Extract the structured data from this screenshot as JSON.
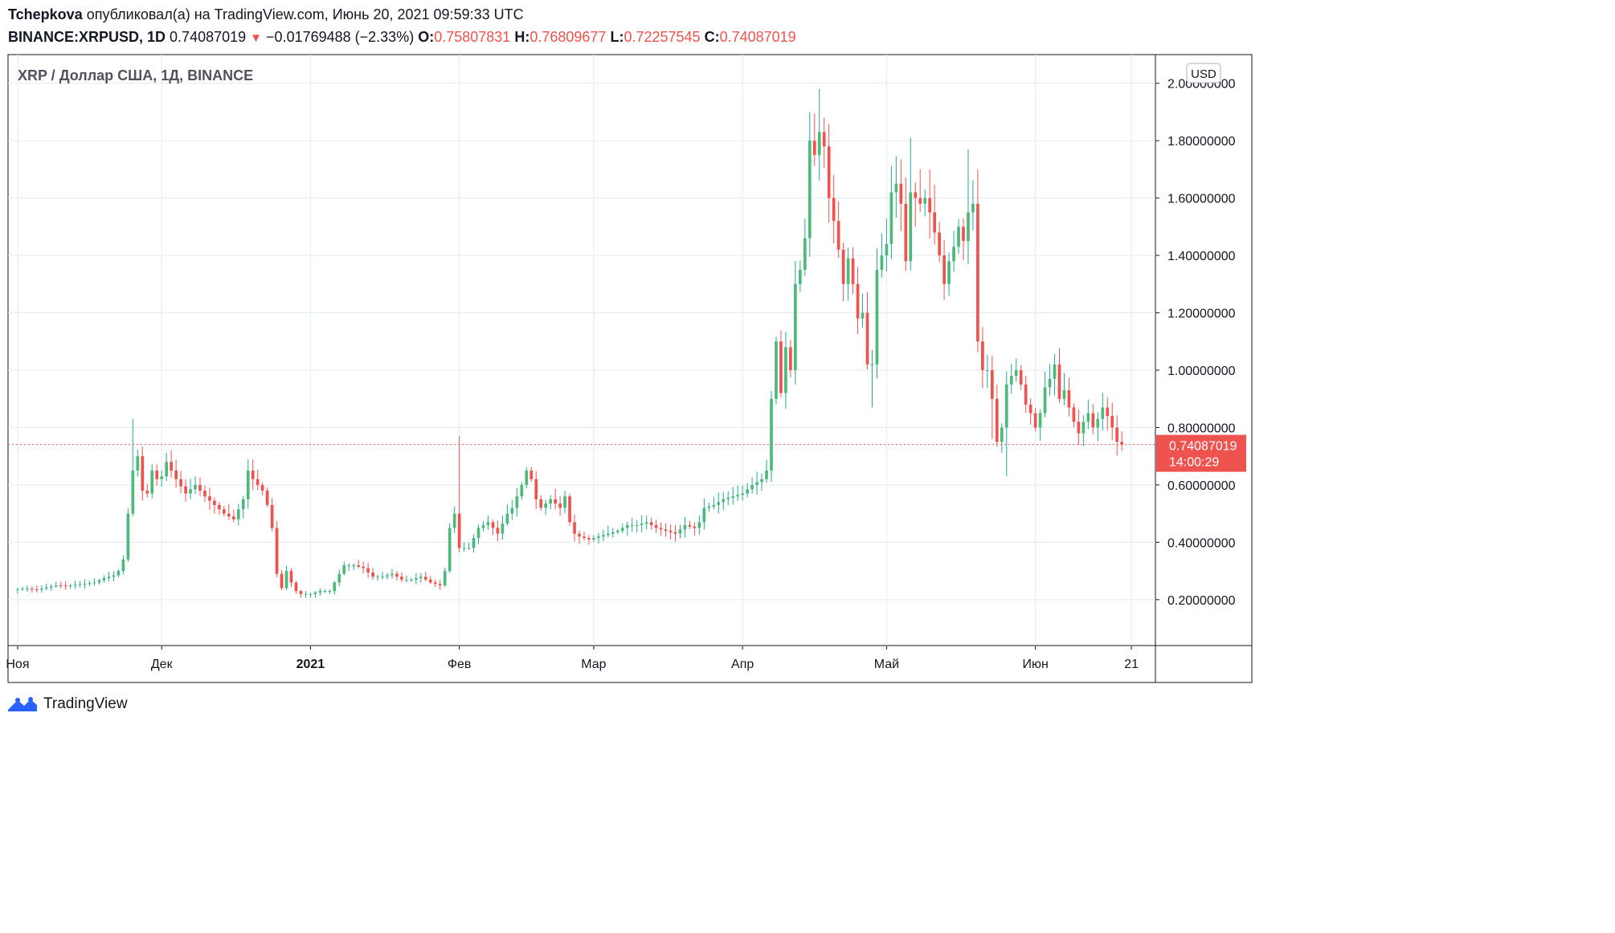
{
  "header": {
    "author": "Tchepkova",
    "published_text": "опубликовал(а) на TradingView.com, Июнь 20, 2021 09:59:33 UTC",
    "symbol": "BINANCE:XRPUSD, 1D",
    "price": "0.74087019",
    "change_arrow": "▼",
    "change": "−0.01769488 (−2.33%)",
    "o_label": "O:",
    "o_value": "0.75807831",
    "h_label": "H:",
    "h_value": "0.76809677",
    "l_label": "L:",
    "l_value": "0.72257545",
    "c_label": "C:",
    "c_value": "0.74087019"
  },
  "chart_data": {
    "type": "candlestick",
    "title": "XRP / Доллар США, 1Д, BINANCE",
    "currency_label": "USD",
    "y_tick_labels": [
      "0.20000000",
      "0.40000000",
      "0.60000000",
      "0.80000000",
      "1.00000000",
      "1.20000000",
      "1.40000000",
      "1.60000000",
      "1.80000000",
      "2.00000000"
    ],
    "y_tick_values": [
      0.2,
      0.4,
      0.6,
      0.8,
      1.0,
      1.2,
      1.4,
      1.6,
      1.8,
      2.0
    ],
    "ylim": [
      0.04,
      2.1
    ],
    "x_tick_labels": [
      {
        "label": "Ноя",
        "day": 0,
        "bold": false
      },
      {
        "label": "Дек",
        "day": 30,
        "bold": false
      },
      {
        "label": "2021",
        "day": 61,
        "bold": true
      },
      {
        "label": "Фев",
        "day": 92,
        "bold": false
      },
      {
        "label": "Мар",
        "day": 120,
        "bold": false
      },
      {
        "label": "Апр",
        "day": 151,
        "bold": false
      },
      {
        "label": "Май",
        "day": 181,
        "bold": false
      },
      {
        "label": "Июн",
        "day": 212,
        "bold": false
      },
      {
        "label": "21",
        "day": 232,
        "bold": false
      }
    ],
    "x_range_days": [
      -2,
      237
    ],
    "last_price_label": "0.74087019",
    "countdown_label": "14:00:29",
    "last_price": 0.74087019,
    "colors": {
      "up": "#26a69a",
      "up_body": "#4fb87b",
      "down": "#ef5350",
      "grid": "#e1ecf2",
      "last_line": "#ef5350"
    },
    "anchors": [
      [
        0,
        0.237
      ],
      [
        2,
        0.238
      ],
      [
        4,
        0.235
      ],
      [
        6,
        0.242
      ],
      [
        8,
        0.25
      ],
      [
        10,
        0.248
      ],
      [
        12,
        0.252
      ],
      [
        14,
        0.255
      ],
      [
        16,
        0.26
      ],
      [
        18,
        0.275
      ],
      [
        20,
        0.285
      ],
      [
        21,
        0.3
      ],
      [
        22,
        0.34
      ],
      [
        23,
        0.5
      ],
      [
        24,
        0.65
      ],
      [
        25,
        0.7
      ],
      [
        26,
        0.58
      ],
      [
        27,
        0.57
      ],
      [
        28,
        0.65
      ],
      [
        29,
        0.62
      ],
      [
        30,
        0.63
      ],
      [
        31,
        0.68
      ],
      [
        33,
        0.62
      ],
      [
        35,
        0.57
      ],
      [
        37,
        0.6
      ],
      [
        39,
        0.56
      ],
      [
        41,
        0.53
      ],
      [
        43,
        0.5
      ],
      [
        45,
        0.48
      ],
      [
        47,
        0.55
      ],
      [
        48,
        0.65
      ],
      [
        49,
        0.62
      ],
      [
        51,
        0.58
      ],
      [
        52,
        0.53
      ],
      [
        53,
        0.45
      ],
      [
        54,
        0.29
      ],
      [
        55,
        0.24
      ],
      [
        56,
        0.3
      ],
      [
        57,
        0.26
      ],
      [
        58,
        0.23
      ],
      [
        59,
        0.22
      ],
      [
        61,
        0.22
      ],
      [
        63,
        0.23
      ],
      [
        65,
        0.23
      ],
      [
        66,
        0.26
      ],
      [
        68,
        0.32
      ],
      [
        70,
        0.32
      ],
      [
        72,
        0.31
      ],
      [
        74,
        0.28
      ],
      [
        76,
        0.28
      ],
      [
        78,
        0.29
      ],
      [
        80,
        0.27
      ],
      [
        82,
        0.27
      ],
      [
        84,
        0.28
      ],
      [
        86,
        0.26
      ],
      [
        88,
        0.25
      ],
      [
        89,
        0.3
      ],
      [
        90,
        0.45
      ],
      [
        91,
        0.5
      ],
      [
        92,
        0.38
      ],
      [
        94,
        0.38
      ],
      [
        96,
        0.45
      ],
      [
        98,
        0.47
      ],
      [
        100,
        0.43
      ],
      [
        102,
        0.5
      ],
      [
        103,
        0.52
      ],
      [
        104,
        0.56
      ],
      [
        105,
        0.6
      ],
      [
        106,
        0.65
      ],
      [
        107,
        0.62
      ],
      [
        108,
        0.55
      ],
      [
        109,
        0.52
      ],
      [
        111,
        0.55
      ],
      [
        113,
        0.52
      ],
      [
        114,
        0.56
      ],
      [
        115,
        0.47
      ],
      [
        116,
        0.43
      ],
      [
        117,
        0.42
      ],
      [
        119,
        0.41
      ],
      [
        121,
        0.42
      ],
      [
        123,
        0.43
      ],
      [
        125,
        0.44
      ],
      [
        127,
        0.46
      ],
      [
        129,
        0.46
      ],
      [
        131,
        0.47
      ],
      [
        133,
        0.45
      ],
      [
        135,
        0.44
      ],
      [
        137,
        0.43
      ],
      [
        139,
        0.46
      ],
      [
        141,
        0.45
      ],
      [
        142,
        0.47
      ],
      [
        143,
        0.52
      ],
      [
        145,
        0.53
      ],
      [
        147,
        0.55
      ],
      [
        149,
        0.56
      ],
      [
        151,
        0.57
      ],
      [
        153,
        0.6
      ],
      [
        155,
        0.62
      ],
      [
        156,
        0.65
      ],
      [
        157,
        0.9
      ],
      [
        158,
        1.1
      ],
      [
        159,
        0.92
      ],
      [
        160,
        1.08
      ],
      [
        161,
        1.0
      ],
      [
        162,
        1.3
      ],
      [
        163,
        1.35
      ],
      [
        164,
        1.46
      ],
      [
        165,
        1.8
      ],
      [
        166,
        1.75
      ],
      [
        167,
        1.83
      ],
      [
        168,
        1.78
      ],
      [
        169,
        1.6
      ],
      [
        170,
        1.52
      ],
      [
        171,
        1.42
      ],
      [
        172,
        1.3
      ],
      [
        173,
        1.39
      ],
      [
        174,
        1.3
      ],
      [
        175,
        1.18
      ],
      [
        176,
        1.2
      ],
      [
        177,
        1.02
      ],
      [
        178,
        1.02
      ],
      [
        179,
        1.35
      ],
      [
        180,
        1.4
      ],
      [
        181,
        1.44
      ],
      [
        182,
        1.62
      ],
      [
        183,
        1.65
      ],
      [
        184,
        1.58
      ],
      [
        185,
        1.38
      ],
      [
        186,
        1.62
      ],
      [
        187,
        1.6
      ],
      [
        188,
        1.58
      ],
      [
        189,
        1.6
      ],
      [
        190,
        1.55
      ],
      [
        191,
        1.48
      ],
      [
        192,
        1.4
      ],
      [
        193,
        1.3
      ],
      [
        194,
        1.38
      ],
      [
        195,
        1.43
      ],
      [
        196,
        1.5
      ],
      [
        197,
        1.45
      ],
      [
        198,
        1.55
      ],
      [
        199,
        1.58
      ],
      [
        200,
        1.1
      ],
      [
        201,
        1.0
      ],
      [
        202,
        1.0
      ],
      [
        203,
        0.9
      ],
      [
        204,
        0.75
      ],
      [
        205,
        0.8
      ],
      [
        206,
        0.95
      ],
      [
        207,
        0.98
      ],
      [
        208,
        1.0
      ],
      [
        209,
        0.95
      ],
      [
        210,
        0.88
      ],
      [
        211,
        0.85
      ],
      [
        212,
        0.8
      ],
      [
        213,
        0.85
      ],
      [
        214,
        0.94
      ],
      [
        215,
        0.97
      ],
      [
        216,
        1.02
      ],
      [
        217,
        0.9
      ],
      [
        218,
        0.93
      ],
      [
        219,
        0.87
      ],
      [
        220,
        0.82
      ],
      [
        221,
        0.78
      ],
      [
        222,
        0.82
      ],
      [
        223,
        0.85
      ],
      [
        224,
        0.8
      ],
      [
        225,
        0.83
      ],
      [
        226,
        0.87
      ],
      [
        227,
        0.84
      ],
      [
        228,
        0.8
      ],
      [
        229,
        0.75
      ],
      [
        230,
        0.741
      ]
    ],
    "spikes": [
      [
        24,
        0.83,
        "high"
      ],
      [
        92,
        0.77,
        "high"
      ],
      [
        167,
        1.98,
        "high"
      ],
      [
        168,
        1.88,
        "high"
      ],
      [
        186,
        1.81,
        "high"
      ],
      [
        198,
        1.77,
        "high"
      ],
      [
        200,
        1.7,
        "high"
      ],
      [
        206,
        0.63,
        "low"
      ],
      [
        203,
        0.76,
        "low"
      ],
      [
        178,
        0.87,
        "low"
      ]
    ]
  }
}
